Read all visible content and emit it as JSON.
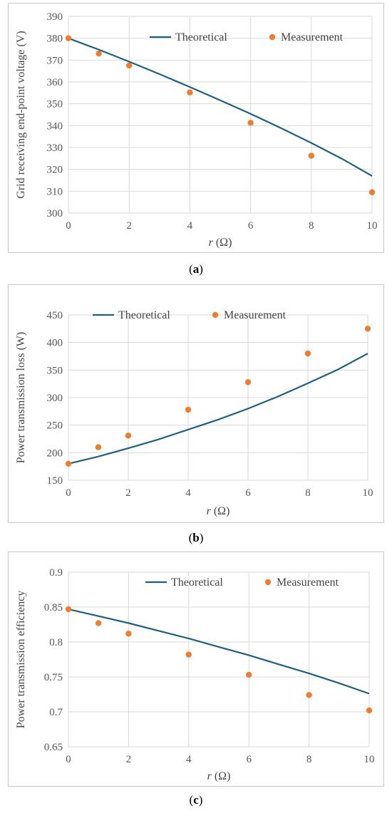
{
  "chart_data": [
    {
      "type": "line",
      "caption_letter": "a",
      "ylabel": "Grid receiving end-point voltage (V)",
      "xlabel": "r (Ω)",
      "xlabel_var": "r",
      "xlabel_unit": " (Ω)",
      "xlim": [
        0,
        10
      ],
      "ylim": [
        300,
        390
      ],
      "xticks": [
        0,
        2,
        4,
        6,
        8,
        10
      ],
      "yticks": [
        300,
        310,
        320,
        330,
        340,
        350,
        360,
        370,
        380,
        390
      ],
      "grid": true,
      "legend_position": "top-right",
      "series": [
        {
          "name": "Theoretical",
          "kind": "line",
          "color": "#1f5f7f",
          "x": [
            0,
            1,
            2,
            3,
            4,
            5,
            6,
            7,
            8,
            9,
            10
          ],
          "y": [
            380,
            374.8,
            369.3,
            363.6,
            357.7,
            351.6,
            345.4,
            338.9,
            332.1,
            324.9,
            317
          ]
        },
        {
          "name": "Measurement",
          "kind": "scatter",
          "color": "#ed7d31",
          "x": [
            0,
            1,
            2,
            4,
            6,
            8,
            10
          ],
          "y": [
            380,
            373,
            367.5,
            355.2,
            341.3,
            326.2,
            309.5
          ]
        }
      ]
    },
    {
      "type": "line",
      "caption_letter": "b",
      "ylabel": "Power transmission loss (W)",
      "xlabel": "r (Ω)",
      "xlabel_var": "r",
      "xlabel_unit": " (Ω)",
      "xlim": [
        0,
        10
      ],
      "ylim": [
        150,
        450
      ],
      "xticks": [
        0,
        2,
        4,
        6,
        8,
        10
      ],
      "yticks": [
        150,
        200,
        250,
        300,
        350,
        400,
        450
      ],
      "grid": true,
      "legend_position": "top-left",
      "series": [
        {
          "name": "Theoretical",
          "kind": "line",
          "color": "#1f5f7f",
          "x": [
            0,
            1,
            2,
            3,
            4,
            5,
            6,
            7,
            8,
            9,
            10
          ],
          "y": [
            180,
            193,
            208,
            224,
            242,
            260,
            280,
            302,
            326,
            351,
            380
          ]
        },
        {
          "name": "Measurement",
          "kind": "scatter",
          "color": "#ed7d31",
          "x": [
            0,
            1,
            2,
            4,
            6,
            8,
            10
          ],
          "y": [
            180,
            210,
            231,
            278,
            328,
            380,
            425
          ]
        }
      ]
    },
    {
      "type": "line",
      "caption_letter": "c",
      "ylabel": "Power transmission efficiency",
      "xlabel": "r (Ω)",
      "xlabel_var": "r",
      "xlabel_unit": " (Ω)",
      "xlim": [
        0,
        10
      ],
      "ylim": [
        0.65,
        0.9
      ],
      "xticks": [
        0,
        2,
        4,
        6,
        8,
        10
      ],
      "yticks": [
        0.65,
        0.7,
        0.75,
        0.8,
        0.85,
        0.9
      ],
      "ytick_labels": [
        "0.65",
        "0.7",
        "0.75",
        "0.8",
        "0.85",
        "0.9"
      ],
      "grid": true,
      "legend_position": "top-right",
      "series": [
        {
          "name": "Theoretical",
          "kind": "line",
          "color": "#1f5f7f",
          "x": [
            0,
            1,
            2,
            3,
            4,
            5,
            6,
            7,
            8,
            9,
            10
          ],
          "y": [
            0.847,
            0.837,
            0.827,
            0.816,
            0.805,
            0.793,
            0.781,
            0.768,
            0.755,
            0.741,
            0.726
          ]
        },
        {
          "name": "Measurement",
          "kind": "scatter",
          "color": "#ed7d31",
          "x": [
            0,
            1,
            2,
            4,
            6,
            8,
            10
          ],
          "y": [
            0.847,
            0.827,
            0.812,
            0.782,
            0.753,
            0.724,
            0.702
          ]
        }
      ]
    }
  ]
}
